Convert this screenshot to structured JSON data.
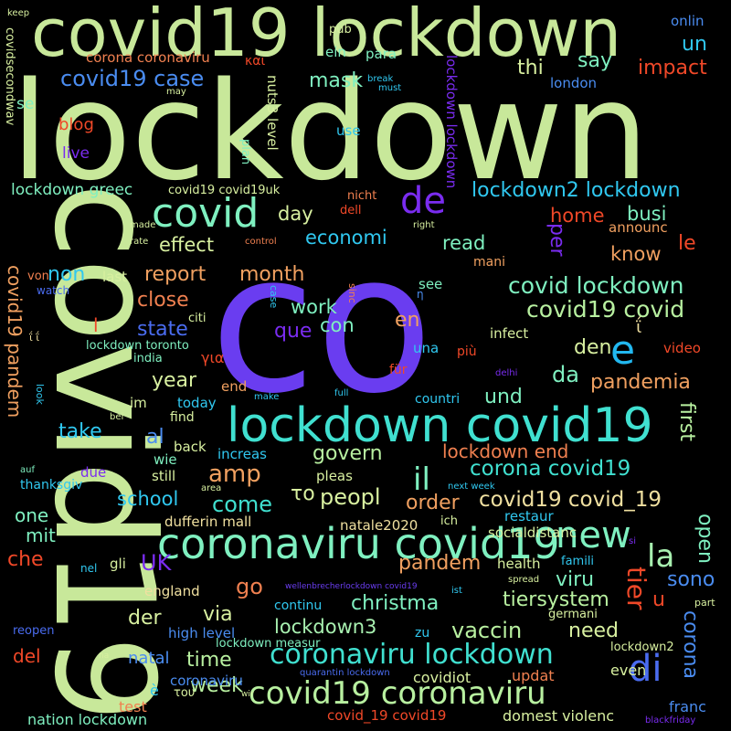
{
  "words": [
    {
      "text": "lockdown",
      "color": "#c8e89a"
    },
    {
      "text": "co",
      "color": "#6a3df0"
    },
    {
      "text": "covid19",
      "color": "#c8e89a"
    },
    {
      "text": "covid19 lockdown",
      "color": "#c8e89a"
    },
    {
      "text": "lockdown covid19",
      "color": "#40e0d0"
    },
    {
      "text": "coronaviru covid19",
      "color": "#7ff0c0"
    },
    {
      "text": "covid19 coronaviru",
      "color": "#b8f0a0"
    },
    {
      "text": "coronaviru lockdown",
      "color": "#40e0d0"
    },
    {
      "text": "covid",
      "color": "#7ff0c0"
    },
    {
      "text": "de",
      "color": "#7a2cf0"
    },
    {
      "text": "e",
      "color": "#22b8f0"
    },
    {
      "text": "new",
      "color": "#7ff0c0"
    },
    {
      "text": "di",
      "color": "#4a6cf0"
    },
    {
      "text": "la",
      "color": "#a8f0b0"
    },
    {
      "text": "il",
      "color": "#7ff0c0"
    },
    {
      "text": "covid19 case",
      "color": "#4a8cf0"
    },
    {
      "text": "lockdown2 lockdown",
      "color": "#30c8f0"
    },
    {
      "text": "covid lockdown",
      "color": "#7ff0c0"
    },
    {
      "text": "covid19 covid",
      "color": "#b8f0a0"
    },
    {
      "text": "corona covid19",
      "color": "#40e0d0"
    },
    {
      "text": "covid19 covid_19",
      "color": "#f0e0a0"
    },
    {
      "text": "christma",
      "color": "#7ff0c0"
    },
    {
      "text": "vaccin",
      "color": "#b8f0a0"
    },
    {
      "text": "lockdown3",
      "color": "#a8f0b0"
    },
    {
      "text": "amp",
      "color": "#f0a060"
    },
    {
      "text": "tier",
      "color": "#f04828"
    },
    {
      "text": "mask",
      "color": "#7ff0c0"
    },
    {
      "text": "impact",
      "color": "#f04828"
    },
    {
      "text": "say",
      "color": "#7ff0c0"
    },
    {
      "text": "un",
      "color": "#30c8f0"
    },
    {
      "text": "thi",
      "color": "#d8f0a0"
    },
    {
      "text": "corona coronaviru",
      "color": "#f08050"
    },
    {
      "text": "blog",
      "color": "#f04828"
    },
    {
      "text": "live",
      "color": "#7a2cf0"
    },
    {
      "text": "se",
      "color": "#7ff0c0"
    },
    {
      "text": "lockdown greec",
      "color": "#7ff0c0"
    },
    {
      "text": "effect",
      "color": "#d8f0a0"
    },
    {
      "text": "day",
      "color": "#d8f0a0"
    },
    {
      "text": "economi",
      "color": "#30c8f0"
    },
    {
      "text": "read",
      "color": "#7ff0c0"
    },
    {
      "text": "home",
      "color": "#f04828"
    },
    {
      "text": "busi",
      "color": "#7ff0c0"
    },
    {
      "text": "per",
      "color": "#7a2cf0"
    },
    {
      "text": "le",
      "color": "#f04828"
    },
    {
      "text": "know",
      "color": "#f0a060"
    },
    {
      "text": "report",
      "color": "#f0a060"
    },
    {
      "text": "non",
      "color": "#30c8f0"
    },
    {
      "text": "close",
      "color": "#f08050"
    },
    {
      "text": "month",
      "color": "#f0a060"
    },
    {
      "text": "work",
      "color": "#7ff0c0"
    },
    {
      "text": "con",
      "color": "#7ff0c0"
    },
    {
      "text": "que",
      "color": "#7a2cf0"
    },
    {
      "text": "en",
      "color": "#f0a060"
    },
    {
      "text": "state",
      "color": "#4a6cf0"
    },
    {
      "text": "covid19 pandem",
      "color": "#f0a060"
    },
    {
      "text": "den",
      "color": "#d8f0a0"
    },
    {
      "text": "da",
      "color": "#7ff0c0"
    },
    {
      "text": "pandemia",
      "color": "#f0a060"
    },
    {
      "text": "year",
      "color": "#d8f0a0"
    },
    {
      "text": "und",
      "color": "#7ff0c0"
    },
    {
      "text": "first",
      "color": "#b8f0a0"
    },
    {
      "text": "take",
      "color": "#30c8f0"
    },
    {
      "text": "al",
      "color": "#4a8cf0"
    },
    {
      "text": "govern",
      "color": "#b8f0a0"
    },
    {
      "text": "lockdown end",
      "color": "#f08050"
    },
    {
      "text": "school",
      "color": "#30c8f0"
    },
    {
      "text": "come",
      "color": "#40e0d0"
    },
    {
      "text": "peopl",
      "color": "#d8f0a0"
    },
    {
      "text": "order",
      "color": "#f0a060"
    },
    {
      "text": "pandem",
      "color": "#f0a060"
    },
    {
      "text": "open",
      "color": "#7ff0c0"
    },
    {
      "text": "one",
      "color": "#7ff0c0"
    },
    {
      "text": "mit",
      "color": "#7ff0c0"
    },
    {
      "text": "che",
      "color": "#f04828"
    },
    {
      "text": "UK",
      "color": "#7a2cf0"
    },
    {
      "text": "go",
      "color": "#f08050"
    },
    {
      "text": "viru",
      "color": "#7ff0c0"
    },
    {
      "text": "sono",
      "color": "#4a8cf0"
    },
    {
      "text": "via",
      "color": "#d8f0a0"
    },
    {
      "text": "der",
      "color": "#d8f0a0"
    },
    {
      "text": "tiersystem",
      "color": "#b8f0a0"
    },
    {
      "text": "u",
      "color": "#f04828"
    },
    {
      "text": "corona",
      "color": "#4a8cf0"
    },
    {
      "text": "need",
      "color": "#d8f0a0"
    },
    {
      "text": "time",
      "color": "#b8f0a0"
    },
    {
      "text": "del",
      "color": "#f04828"
    },
    {
      "text": "week",
      "color": "#b8f0a0"
    },
    {
      "text": "natal",
      "color": "#4a8cf0"
    },
    {
      "text": "covidiot",
      "color": "#d8f0a0"
    },
    {
      "text": "updat",
      "color": "#f08050"
    },
    {
      "text": "even",
      "color": "#d8f0a0"
    },
    {
      "text": "franc",
      "color": "#4a8cf0"
    },
    {
      "text": "domest violenc",
      "color": "#d8f0a0"
    },
    {
      "text": "nation lockdown",
      "color": "#7ff0c0"
    },
    {
      "text": "covid_19 covid19",
      "color": "#f04828"
    },
    {
      "text": "test",
      "color": "#f08050"
    },
    {
      "text": "dufferin mall",
      "color": "#f0e0a0"
    },
    {
      "text": "natale2020",
      "color": "#f0e0a0"
    },
    {
      "text": "restaur",
      "color": "#30c8f0"
    },
    {
      "text": "socialdistanc",
      "color": "#d8f0a0"
    },
    {
      "text": "health",
      "color": "#d8f0a0"
    },
    {
      "text": "famili",
      "color": "#30c8f0"
    },
    {
      "text": "england",
      "color": "#f0e0a0"
    },
    {
      "text": "continu",
      "color": "#30c8f0"
    },
    {
      "text": "high level",
      "color": "#4a8cf0"
    },
    {
      "text": "lockdown measur",
      "color": "#7ff0c0"
    },
    {
      "text": "coronaviru",
      "color": "#4a8cf0"
    },
    {
      "text": "still",
      "color": "#d8f0a0"
    },
    {
      "text": "back",
      "color": "#d8f0a0"
    },
    {
      "text": "increas",
      "color": "#30c8f0"
    },
    {
      "text": "wie",
      "color": "#7ff0c0"
    },
    {
      "text": "due",
      "color": "#7a2cf0"
    },
    {
      "text": "thanksgiv",
      "color": "#30c8f0"
    },
    {
      "text": "pleas",
      "color": "#d8f0a0"
    },
    {
      "text": "find",
      "color": "#d8f0a0"
    },
    {
      "text": "today",
      "color": "#30c8f0"
    },
    {
      "text": "im",
      "color": "#d8f0a0"
    },
    {
      "text": "end",
      "color": "#f0a060"
    },
    {
      "text": "countri",
      "color": "#30c8f0"
    },
    {
      "text": "video",
      "color": "#f04828"
    },
    {
      "text": "più",
      "color": "#f04828"
    },
    {
      "text": "für",
      "color": "#f04828"
    },
    {
      "text": "infect",
      "color": "#d8f0a0"
    },
    {
      "text": "mani",
      "color": "#f0a060"
    },
    {
      "text": "see",
      "color": "#7ff0c0"
    },
    {
      "text": "una",
      "color": "#30c8f0"
    },
    {
      "text": "lockdown toronto",
      "color": "#7ff0c0"
    },
    {
      "text": "india",
      "color": "#7ff0c0"
    },
    {
      "text": "citi",
      "color": "#d8f0a0"
    },
    {
      "text": "last",
      "color": "#d8f0a0"
    },
    {
      "text": "watch",
      "color": "#4a6cf0"
    },
    {
      "text": "von",
      "color": "#f08050"
    },
    {
      "text": "announc",
      "color": "#f0a060"
    },
    {
      "text": "ein",
      "color": "#7ff0c0"
    },
    {
      "text": "para",
      "color": "#7ff0c0"
    },
    {
      "text": "pub",
      "color": "#d8f0a0"
    },
    {
      "text": "use",
      "color": "#30c8f0"
    },
    {
      "text": "plan",
      "color": "#7ff0c0"
    },
    {
      "text": "london",
      "color": "#4a8cf0"
    },
    {
      "text": "onlin",
      "color": "#4a8cf0"
    },
    {
      "text": "covidsecondwav",
      "color": "#d8f0a0"
    },
    {
      "text": "nuts3 level",
      "color": "#d8f0a0"
    },
    {
      "text": "lockdown lockdown",
      "color": "#7a2cf0"
    },
    {
      "text": "covid19 covid19uk",
      "color": "#d8f0a0"
    },
    {
      "text": "dell",
      "color": "#f04828"
    },
    {
      "text": "nicht",
      "color": "#f08050"
    },
    {
      "text": "keep",
      "color": "#d8f0a0"
    },
    {
      "text": "may",
      "color": "#d8f0a0"
    },
    {
      "text": "break",
      "color": "#30c8f0"
    },
    {
      "text": "must",
      "color": "#30c8f0"
    },
    {
      "text": "και",
      "color": "#f04828"
    },
    {
      "text": "made",
      "color": "#d8f0a0"
    },
    {
      "text": "rate",
      "color": "#d8f0a0"
    },
    {
      "text": "control",
      "color": "#f08050"
    },
    {
      "text": "right",
      "color": "#d8f0a0"
    },
    {
      "text": "sinc",
      "color": "#f08050"
    },
    {
      "text": "case",
      "color": "#30c8f0"
    },
    {
      "text": "η",
      "color": "#4a8cf0"
    },
    {
      "text": "για",
      "color": "#f04828"
    },
    {
      "text": "το",
      "color": "#d8f0a0"
    },
    {
      "text": "delhi",
      "color": "#7a2cf0"
    },
    {
      "text": "full",
      "color": "#30c8f0"
    },
    {
      "text": "make",
      "color": "#30c8f0"
    },
    {
      "text": "look",
      "color": "#30c8f0"
    },
    {
      "text": "bei",
      "color": "#d8f0a0"
    },
    {
      "text": "auf",
      "color": "#7ff0c0"
    },
    {
      "text": "area",
      "color": "#d8f0a0"
    },
    {
      "text": "next week",
      "color": "#30c8f0"
    },
    {
      "text": "ich",
      "color": "#d8f0a0"
    },
    {
      "text": "si",
      "color": "#7a2cf0"
    },
    {
      "text": "gli",
      "color": "#d8f0a0"
    },
    {
      "text": "nel",
      "color": "#30c8f0"
    },
    {
      "text": "wellenbrecherlockdown covid19",
      "color": "#6a3df0"
    },
    {
      "text": "ist",
      "color": "#30c8f0"
    },
    {
      "text": "spread",
      "color": "#d8f0a0"
    },
    {
      "text": "germani",
      "color": "#d8f0a0"
    },
    {
      "text": "part",
      "color": "#d8f0a0"
    },
    {
      "text": "zu",
      "color": "#30c8f0"
    },
    {
      "text": "lockdown2",
      "color": "#d8f0a0"
    },
    {
      "text": "reopen",
      "color": "#4a6cf0"
    },
    {
      "text": "na",
      "color": "#d8f0a0"
    },
    {
      "text": "quarantin lockdown",
      "color": "#4a6cf0"
    },
    {
      "text": "wir",
      "color": "#d8f0a0"
    },
    {
      "text": "blackfriday",
      "color": "#7a2cf0"
    },
    {
      "text": "è",
      "color": "#30c8f0"
    },
    {
      "text": "του",
      "color": "#d8f0a0"
    },
    {
      "text": "l",
      "color": "#f04828"
    },
    {
      "text": "ΐ ΐ",
      "color": "#f0e0a0"
    },
    {
      "text": "ΐ",
      "color": "#f0e0a0"
    }
  ]
}
